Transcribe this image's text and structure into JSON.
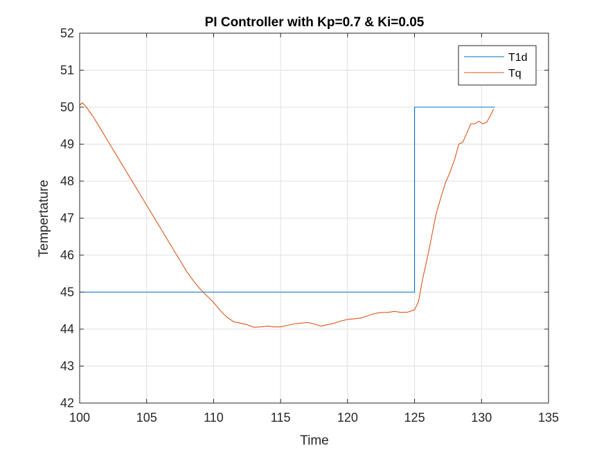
{
  "chart_data": {
    "type": "line",
    "title": "PI Controller with Kp=0.7 & Ki=0.05",
    "xlabel": "Time",
    "ylabel": "Tempertature",
    "xlim": [
      100,
      135
    ],
    "ylim": [
      42,
      52
    ],
    "xticks": [
      100,
      105,
      110,
      115,
      120,
      125,
      130,
      135
    ],
    "yticks": [
      42,
      43,
      44,
      45,
      46,
      47,
      48,
      49,
      50,
      51,
      52
    ],
    "grid": true,
    "legend_position": "top-right",
    "series": [
      {
        "name": "T1d",
        "color": "#0072BD",
        "x": [
          100,
          125,
          125,
          131
        ],
        "y": [
          45,
          45,
          50,
          50
        ]
      },
      {
        "name": "Tq",
        "color": "#D95319",
        "x": [
          100,
          100.2,
          100.5,
          101,
          101.5,
          102,
          102.5,
          103,
          103.5,
          104,
          104.5,
          105,
          105.5,
          106,
          106.5,
          107,
          107.5,
          108,
          108.5,
          109,
          109.5,
          110,
          110.5,
          111,
          111.5,
          112,
          112.5,
          113,
          113.5,
          114,
          114.5,
          115,
          115.5,
          116,
          116.5,
          117,
          117.5,
          118,
          118.5,
          119,
          119.5,
          120,
          120.5,
          121,
          121.5,
          122,
          122.5,
          123,
          123.5,
          124,
          124.5,
          125,
          125.3,
          125.6,
          126,
          126.3,
          126.6,
          127,
          127.3,
          127.6,
          128,
          128.3,
          128.6,
          128.9,
          129.2,
          129.5,
          129.8,
          130.1,
          130.4,
          130.7,
          130.9
        ],
        "y": [
          50.05,
          50.12,
          50.0,
          49.75,
          49.45,
          49.15,
          48.85,
          48.55,
          48.25,
          47.95,
          47.65,
          47.35,
          47.05,
          46.75,
          46.45,
          46.15,
          45.85,
          45.55,
          45.3,
          45.08,
          44.9,
          44.72,
          44.5,
          44.32,
          44.2,
          44.16,
          44.12,
          44.05,
          44.06,
          44.08,
          44.06,
          44.06,
          44.1,
          44.14,
          44.16,
          44.18,
          44.14,
          44.08,
          44.12,
          44.16,
          44.22,
          44.26,
          44.28,
          44.3,
          44.36,
          44.42,
          44.45,
          44.45,
          44.48,
          44.45,
          44.46,
          44.52,
          44.75,
          45.35,
          46.0,
          46.55,
          47.1,
          47.6,
          47.95,
          48.2,
          48.6,
          49.0,
          49.05,
          49.3,
          49.55,
          49.55,
          49.62,
          49.55,
          49.6,
          49.8,
          49.95
        ]
      }
    ]
  }
}
